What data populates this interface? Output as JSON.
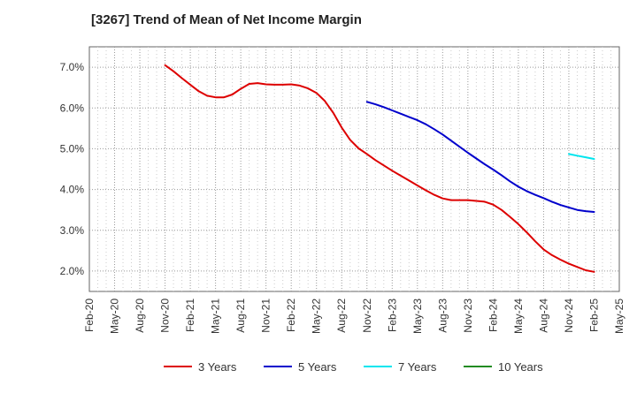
{
  "chart_data": {
    "type": "line",
    "title": "[3267]  Trend of Mean of Net Income Margin",
    "xlabel": "",
    "ylabel": "",
    "x_range": [
      "2020-02",
      "2025-05"
    ],
    "ylim": [
      1.5,
      7.5
    ],
    "y_ticks": [
      2.0,
      3.0,
      4.0,
      5.0,
      6.0,
      7.0
    ],
    "y_tick_labels": [
      "2.0%",
      "3.0%",
      "4.0%",
      "5.0%",
      "6.0%",
      "7.0%"
    ],
    "x_tick_labels": [
      "Feb-20",
      "May-20",
      "Aug-20",
      "Nov-20",
      "Feb-21",
      "May-21",
      "Aug-21",
      "Nov-21",
      "Feb-22",
      "May-22",
      "Aug-22",
      "Nov-22",
      "Feb-23",
      "May-23",
      "Aug-23",
      "Nov-23",
      "Feb-24",
      "May-24",
      "Aug-24",
      "Nov-24",
      "Feb-25",
      "May-25"
    ],
    "grid": true,
    "legend_position": "bottom",
    "series": [
      {
        "name": "3 Years",
        "color": "#dd0000",
        "x": [
          "2020-11",
          "2020-12",
          "2021-01",
          "2021-02",
          "2021-03",
          "2021-04",
          "2021-05",
          "2021-06",
          "2021-07",
          "2021-08",
          "2021-09",
          "2021-10",
          "2021-11",
          "2021-12",
          "2022-01",
          "2022-02",
          "2022-03",
          "2022-04",
          "2022-05",
          "2022-06",
          "2022-07",
          "2022-08",
          "2022-09",
          "2022-10",
          "2022-11",
          "2022-12",
          "2023-01",
          "2023-02",
          "2023-03",
          "2023-04",
          "2023-05",
          "2023-06",
          "2023-07",
          "2023-08",
          "2023-09",
          "2023-10",
          "2023-11",
          "2023-12",
          "2024-01",
          "2024-02",
          "2024-03",
          "2024-04",
          "2024-05",
          "2024-06",
          "2024-07",
          "2024-08",
          "2024-09",
          "2024-10",
          "2024-11",
          "2024-12",
          "2025-01",
          "2025-02"
        ],
        "y": [
          7.05,
          6.9,
          6.73,
          6.57,
          6.41,
          6.3,
          6.26,
          6.26,
          6.33,
          6.47,
          6.59,
          6.61,
          6.58,
          6.57,
          6.57,
          6.58,
          6.55,
          6.48,
          6.37,
          6.17,
          5.88,
          5.52,
          5.22,
          5.01,
          4.87,
          4.72,
          4.59,
          4.46,
          4.34,
          4.22,
          4.1,
          3.98,
          3.87,
          3.78,
          3.74,
          3.74,
          3.74,
          3.72,
          3.7,
          3.63,
          3.5,
          3.33,
          3.15,
          2.95,
          2.73,
          2.53,
          2.39,
          2.28,
          2.18,
          2.1,
          2.02,
          1.98
        ]
      },
      {
        "name": "5 Years",
        "color": "#0000cc",
        "x": [
          "2022-11",
          "2022-12",
          "2023-01",
          "2023-02",
          "2023-03",
          "2023-04",
          "2023-05",
          "2023-06",
          "2023-07",
          "2023-08",
          "2023-09",
          "2023-10",
          "2023-11",
          "2023-12",
          "2024-01",
          "2024-02",
          "2024-03",
          "2024-04",
          "2024-05",
          "2024-06",
          "2024-07",
          "2024-08",
          "2024-09",
          "2024-10",
          "2024-11",
          "2024-12",
          "2025-01",
          "2025-02"
        ],
        "y": [
          6.15,
          6.09,
          6.02,
          5.94,
          5.86,
          5.78,
          5.7,
          5.6,
          5.48,
          5.35,
          5.2,
          5.05,
          4.9,
          4.76,
          4.62,
          4.49,
          4.35,
          4.2,
          4.07,
          3.96,
          3.87,
          3.79,
          3.7,
          3.62,
          3.56,
          3.5,
          3.47,
          3.45
        ]
      },
      {
        "name": "7 Years",
        "color": "#00e5ee",
        "x": [
          "2024-11",
          "2024-12",
          "2025-01",
          "2025-02"
        ],
        "y": [
          4.87,
          4.83,
          4.79,
          4.75
        ]
      },
      {
        "name": "10 Years",
        "color": "#228b22",
        "x": [],
        "y": []
      }
    ]
  }
}
